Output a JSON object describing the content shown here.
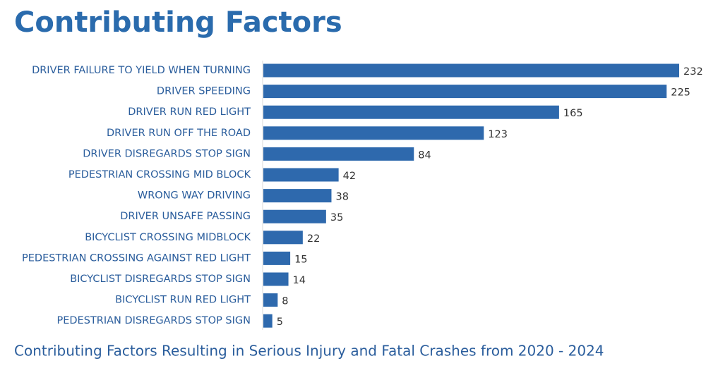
{
  "chart_data": {
    "type": "bar",
    "orientation": "horizontal",
    "title": "Contributing Factors",
    "caption": "Contributing Factors Resulting in Serious Injury and Fatal Crashes from 2020 - 2024",
    "categories": [
      "DRIVER FAILURE TO YIELD WHEN TURNING",
      "DRIVER SPEEDING",
      "DRIVER RUN RED LIGHT",
      "DRIVER RUN OFF THE ROAD",
      "DRIVER DISREGARDS STOP SIGN",
      "PEDESTRIAN CROSSING MID BLOCK",
      "WRONG WAY DRIVING",
      "DRIVER UNSAFE PASSING",
      "BICYCLIST CROSSING MIDBLOCK",
      "PEDESTRIAN CROSSING AGAINST RED LIGHT",
      "BICYCLIST DISREGARDS STOP SIGN",
      "BICYCLIST RUN RED LIGHT",
      "PEDESTRIAN DISREGARDS STOP SIGN"
    ],
    "values": [
      232,
      225,
      165,
      123,
      84,
      42,
      38,
      35,
      22,
      15,
      14,
      8,
      5
    ],
    "color": "#2e69ad"
  }
}
